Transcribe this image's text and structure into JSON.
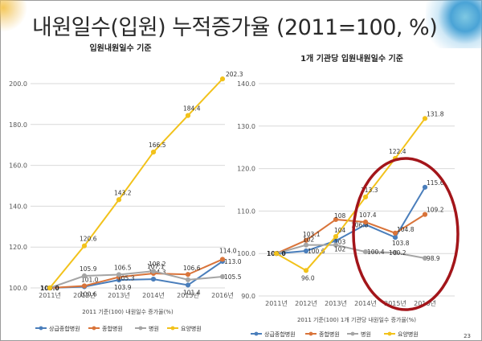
{
  "slide": {
    "title": "내원일수(입원) 누적증가율 (2011=100, %)",
    "page_number": "23"
  },
  "chart_data": [
    {
      "type": "line",
      "title": "입원내원일수 기준",
      "x_caption": "2011 기준(100) 내원일수 증가율(%)",
      "categories": [
        "2011년",
        "2012년",
        "2013년",
        "2014년",
        "2015년",
        "2016년"
      ],
      "ylim": [
        100,
        200
      ],
      "yticks": [
        "100.0",
        "120.0",
        "140.0",
        "160.0",
        "180.0",
        "200.0"
      ],
      "grid": true,
      "legend_position": "bottom",
      "series": [
        {
          "name": "상급종합병원",
          "color": "#4a7ebb",
          "values": [
            100.0,
            100.6,
            103.9,
            104.3,
            101.4,
            113.0
          ],
          "labels": [
            "",
            "100.6",
            "103.9",
            "104.3",
            "101.4",
            "113.0"
          ]
        },
        {
          "name": "종합병원",
          "color": "#d9743a",
          "values": [
            100.0,
            101.0,
            105.3,
            107.1,
            106.6,
            114.0
          ],
          "labels": [
            "",
            "101.0",
            "105.3",
            "107.1",
            "106.6",
            "114.0"
          ]
        },
        {
          "name": "병원",
          "color": "#a5a5a5",
          "values": [
            100.0,
            105.9,
            106.5,
            108.2,
            104.0,
            105.5
          ],
          "labels": [
            "100.0",
            "105.9",
            "106.5",
            "108.2",
            "",
            "105.5"
          ]
        },
        {
          "name": "요양병원",
          "color": "#f2c21b",
          "values": [
            100.0,
            120.6,
            143.2,
            166.5,
            184.4,
            202.3
          ],
          "labels": [
            "",
            "120.6",
            "143.2",
            "166.5",
            "184.4",
            "202.3"
          ]
        }
      ]
    },
    {
      "type": "line",
      "title": "1개 기관당 입원내원일수 기준",
      "x_caption": "2011 기준(100) 1개 기관당 내원일수 증가율(%)",
      "categories": [
        "2011년",
        "2012년",
        "2013년",
        "2014년",
        "2015년",
        "2016년"
      ],
      "ylim": [
        90,
        140
      ],
      "yticks": [
        "90.0",
        "100.0",
        "110.0",
        "120.0",
        "130.0",
        "140.0"
      ],
      "grid": true,
      "legend_position": "bottom",
      "highlight": "circle around 2014년–2016년",
      "series": [
        {
          "name": "상급종합병원",
          "color": "#4a7ebb",
          "values": [
            100.0,
            100.6,
            103.0,
            106.8,
            103.8,
            115.6
          ],
          "labels": [
            "",
            "100.6",
            "103",
            "106.8",
            "103.8",
            "115.6"
          ]
        },
        {
          "name": "종합병원",
          "color": "#d9743a",
          "values": [
            100.0,
            103.1,
            108.0,
            107.4,
            104.8,
            109.2
          ],
          "labels": [
            "",
            "103.1",
            "108",
            "107.4",
            "104.8",
            "109.2"
          ]
        },
        {
          "name": "병원",
          "color": "#a5a5a5",
          "values": [
            100.0,
            102.0,
            102.0,
            100.4,
            100.2,
            98.9
          ],
          "labels": [
            "100.0",
            "102",
            "102",
            "100.4",
            "100.2",
            "98.9"
          ]
        },
        {
          "name": "요양병원",
          "color": "#f2c21b",
          "values": [
            100.0,
            96.0,
            104.0,
            113.3,
            122.4,
            131.8
          ],
          "labels": [
            "",
            "96.0",
            "104",
            "113.3",
            "122.4",
            "131.8"
          ]
        }
      ]
    }
  ]
}
